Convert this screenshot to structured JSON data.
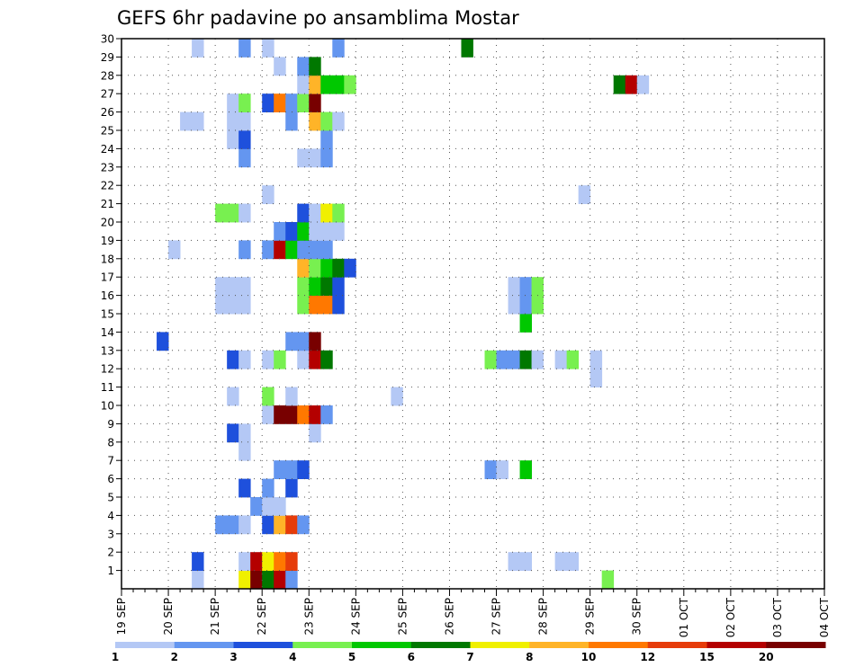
{
  "chart_data": {
    "type": "heatmap",
    "title": "GEFS 6hr padavine po ansamblima Mostar",
    "xlabel": "",
    "ylabel": "",
    "x_tick_labels": [
      "19 SEP",
      "20 SEP",
      "21 SEP",
      "22 SEP",
      "23 SEP",
      "24 SEP",
      "25 SEP",
      "26 SEP",
      "27 SEP",
      "28 SEP",
      "29 SEP",
      "30 SEP",
      "01 OCT",
      "02 OCT",
      "03 OCT",
      "04 OCT"
    ],
    "x_unit": "6-hour steps from 19 SEP 00Z (4 steps per day)",
    "xlim": [
      0,
      60
    ],
    "y_tick_labels": [
      "1",
      "2",
      "3",
      "4",
      "5",
      "6",
      "7",
      "8",
      "9",
      "10",
      "11",
      "12",
      "13",
      "14",
      "15",
      "16",
      "17",
      "18",
      "19",
      "20",
      "21",
      "22",
      "23",
      "24",
      "25",
      "26",
      "27",
      "28",
      "29",
      "30"
    ],
    "ylim": [
      0,
      30
    ],
    "grid": true,
    "legend": "bottom colorbar",
    "colorbar": {
      "colors": [
        "#b4c8f5",
        "#6496f0",
        "#1e50dc",
        "#78f050",
        "#00c800",
        "#007800",
        "#f0f000",
        "#ffb428",
        "#ff7800",
        "#e63c0a",
        "#b40000",
        "#780000"
      ],
      "labels": [
        "1",
        "2",
        "3",
        "4",
        "5",
        "6",
        "7",
        "8",
        "10",
        "12",
        "15",
        "20"
      ]
    },
    "cells": [
      [
        6,
        0,
        1
      ],
      [
        10,
        0,
        7
      ],
      [
        11,
        0,
        12
      ],
      [
        12,
        0,
        6
      ],
      [
        13,
        0,
        11
      ],
      [
        14,
        0,
        2
      ],
      [
        41,
        0,
        4
      ],
      [
        6,
        1,
        3
      ],
      [
        10,
        1,
        1
      ],
      [
        11,
        1,
        11
      ],
      [
        12,
        1,
        7
      ],
      [
        13,
        1,
        9
      ],
      [
        14,
        1,
        10
      ],
      [
        33,
        1,
        1
      ],
      [
        34,
        1,
        1
      ],
      [
        37,
        1,
        1
      ],
      [
        38,
        1,
        1
      ],
      [
        8,
        3,
        2
      ],
      [
        9,
        3,
        2
      ],
      [
        10,
        3,
        1
      ],
      [
        12,
        3,
        3
      ],
      [
        13,
        3,
        8
      ],
      [
        14,
        3,
        10
      ],
      [
        15,
        3,
        2
      ],
      [
        11,
        4,
        2
      ],
      [
        12,
        4,
        1
      ],
      [
        13,
        4,
        1
      ],
      [
        10,
        5,
        3
      ],
      [
        12,
        5,
        2
      ],
      [
        14,
        5,
        3
      ],
      [
        13,
        6,
        2
      ],
      [
        14,
        6,
        2
      ],
      [
        15,
        6,
        3
      ],
      [
        31,
        6,
        2
      ],
      [
        32,
        6,
        1
      ],
      [
        34,
        6,
        5
      ],
      [
        10,
        7,
        1
      ],
      [
        9,
        8,
        3
      ],
      [
        10,
        8,
        1
      ],
      [
        16,
        8,
        1
      ],
      [
        12,
        9,
        1
      ],
      [
        13,
        9,
        12
      ],
      [
        14,
        9,
        12
      ],
      [
        15,
        9,
        9
      ],
      [
        16,
        9,
        11
      ],
      [
        17,
        9,
        2
      ],
      [
        9,
        10,
        1
      ],
      [
        12,
        10,
        4
      ],
      [
        14,
        10,
        1
      ],
      [
        23,
        10,
        1
      ],
      [
        40,
        11,
        1
      ],
      [
        9,
        12,
        3
      ],
      [
        10,
        12,
        1
      ],
      [
        12,
        12,
        1
      ],
      [
        13,
        12,
        4
      ],
      [
        15,
        12,
        1
      ],
      [
        16,
        12,
        11
      ],
      [
        17,
        12,
        6
      ],
      [
        31,
        12,
        4
      ],
      [
        32,
        12,
        2
      ],
      [
        33,
        12,
        2
      ],
      [
        34,
        12,
        6
      ],
      [
        35,
        12,
        1
      ],
      [
        37,
        12,
        1
      ],
      [
        38,
        12,
        4
      ],
      [
        40,
        12,
        1
      ],
      [
        3,
        13,
        3
      ],
      [
        14,
        13,
        2
      ],
      [
        15,
        13,
        2
      ],
      [
        16,
        13,
        12
      ],
      [
        34,
        14,
        5
      ],
      [
        8,
        15,
        1
      ],
      [
        9,
        15,
        1
      ],
      [
        10,
        15,
        1
      ],
      [
        15,
        15,
        4
      ],
      [
        16,
        15,
        9
      ],
      [
        17,
        15,
        9
      ],
      [
        18,
        15,
        3
      ],
      [
        33,
        15,
        1
      ],
      [
        34,
        15,
        2
      ],
      [
        35,
        15,
        4
      ],
      [
        8,
        16,
        1
      ],
      [
        9,
        16,
        1
      ],
      [
        10,
        16,
        1
      ],
      [
        15,
        16,
        4
      ],
      [
        16,
        16,
        5
      ],
      [
        17,
        16,
        6
      ],
      [
        18,
        16,
        3
      ],
      [
        33,
        16,
        1
      ],
      [
        34,
        16,
        2
      ],
      [
        35,
        16,
        4
      ],
      [
        15,
        17,
        8
      ],
      [
        16,
        17,
        4
      ],
      [
        17,
        17,
        5
      ],
      [
        18,
        17,
        6
      ],
      [
        19,
        17,
        3
      ],
      [
        4,
        18,
        1
      ],
      [
        10,
        18,
        2
      ],
      [
        12,
        18,
        2
      ],
      [
        13,
        18,
        11
      ],
      [
        14,
        18,
        5
      ],
      [
        15,
        18,
        2
      ],
      [
        16,
        18,
        2
      ],
      [
        17,
        18,
        2
      ],
      [
        13,
        19,
        2
      ],
      [
        14,
        19,
        3
      ],
      [
        15,
        19,
        5
      ],
      [
        16,
        19,
        1
      ],
      [
        17,
        19,
        1
      ],
      [
        18,
        19,
        1
      ],
      [
        8,
        20,
        4
      ],
      [
        9,
        20,
        4
      ],
      [
        10,
        20,
        1
      ],
      [
        15,
        20,
        3
      ],
      [
        16,
        20,
        1
      ],
      [
        17,
        20,
        7
      ],
      [
        18,
        20,
        4
      ],
      [
        12,
        21,
        1
      ],
      [
        39,
        21,
        1
      ],
      [
        10,
        23,
        2
      ],
      [
        15,
        23,
        1
      ],
      [
        16,
        23,
        1
      ],
      [
        17,
        23,
        2
      ],
      [
        9,
        24,
        1
      ],
      [
        10,
        24,
        3
      ],
      [
        17,
        24,
        2
      ],
      [
        5,
        25,
        1
      ],
      [
        6,
        25,
        1
      ],
      [
        9,
        25,
        1
      ],
      [
        10,
        25,
        1
      ],
      [
        14,
        25,
        2
      ],
      [
        16,
        25,
        8
      ],
      [
        17,
        25,
        4
      ],
      [
        18,
        25,
        1
      ],
      [
        9,
        26,
        1
      ],
      [
        10,
        26,
        4
      ],
      [
        12,
        26,
        3
      ],
      [
        13,
        26,
        9
      ],
      [
        14,
        26,
        2
      ],
      [
        15,
        26,
        4
      ],
      [
        16,
        26,
        12
      ],
      [
        15,
        27,
        1
      ],
      [
        16,
        27,
        8
      ],
      [
        17,
        27,
        5
      ],
      [
        18,
        27,
        5
      ],
      [
        19,
        27,
        4
      ],
      [
        42,
        27,
        6
      ],
      [
        43,
        27,
        11
      ],
      [
        44,
        27,
        1
      ],
      [
        13,
        28,
        1
      ],
      [
        15,
        28,
        2
      ],
      [
        16,
        28,
        6
      ],
      [
        6,
        29,
        1
      ],
      [
        10,
        29,
        2
      ],
      [
        12,
        29,
        1
      ],
      [
        18,
        29,
        2
      ],
      [
        29,
        29,
        6
      ]
    ]
  }
}
